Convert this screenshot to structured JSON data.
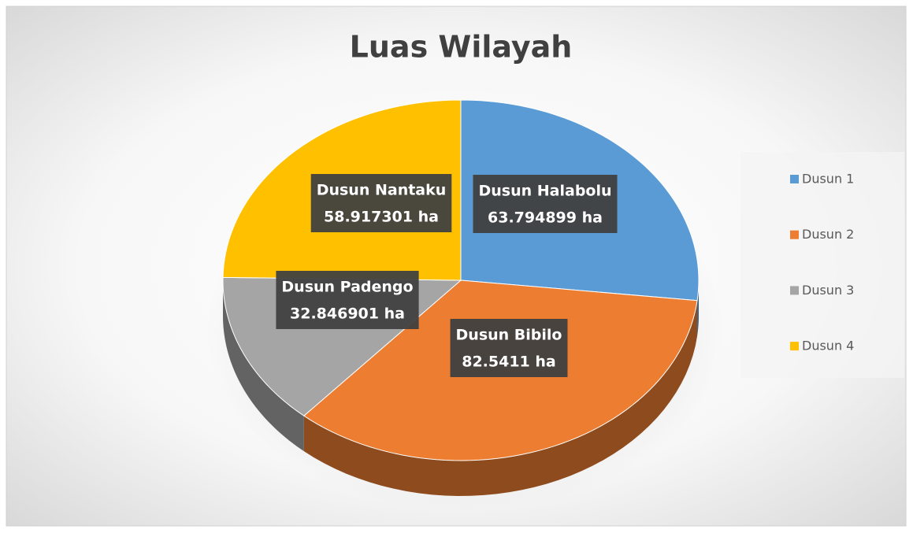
{
  "chart_data": {
    "type": "pie",
    "title": "Luas Wilayah",
    "categories": [
      "Dusun 1",
      "Dusun 2",
      "Dusun 3",
      "Dusun 4"
    ],
    "values": [
      63.794899,
      82.5411,
      32.846901,
      58.917301
    ],
    "label_names": [
      "Dusun Halabolu",
      "Dusun Bibilo",
      "Dusun Padengo",
      "Dusun Nantaku"
    ],
    "value_labels": [
      "63.794899 ha",
      "82.5411 ha",
      "32.846901 ha",
      "58.917301 ha"
    ],
    "colors": [
      "#5b9bd5",
      "#ed7d31",
      "#a5a5a5",
      "#ffc000"
    ],
    "legend": "right"
  }
}
